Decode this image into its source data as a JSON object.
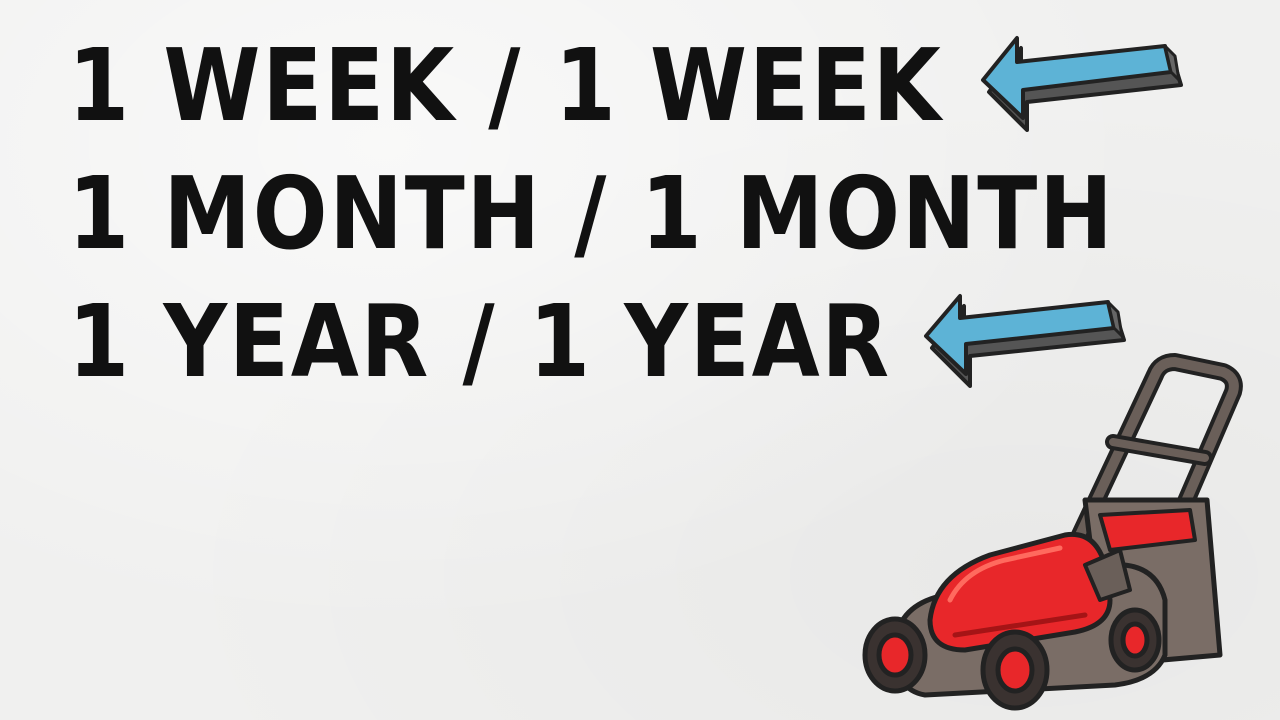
{
  "lines": [
    "1 WEEK / 1 WEEK",
    "1 MONTH / 1 MONTH",
    "1 YEAR / 1 YEAR"
  ],
  "icons": {
    "top_arrow": "blue-arrow-icon",
    "bottom_arrow": "blue-arrow-icon",
    "mower": "lawn-mower-icon"
  },
  "colors": {
    "text": "#111111",
    "arrow": "#5db3d6",
    "mower_body": "#e8272a",
    "mower_deck": "#7a6d66"
  }
}
